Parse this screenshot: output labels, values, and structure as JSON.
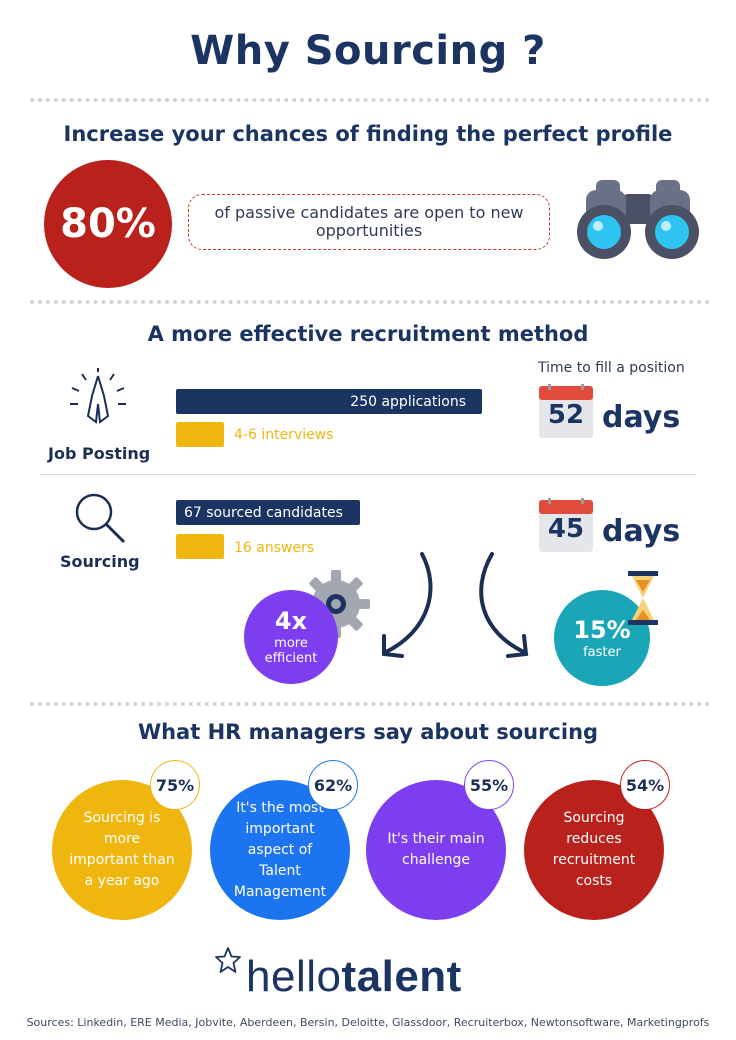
{
  "title": "Why Sourcing ?",
  "section1": {
    "heading": "Increase your chances of finding the perfect profile",
    "stat": "80%",
    "text": "of passive candidates are open to new opportunities"
  },
  "section2": {
    "heading": "A more effective recruitment method",
    "time_label": "Time to fill a position",
    "job_posting": {
      "label": "Job Posting",
      "bar1": "250 applications",
      "bar2": "4-6 interviews",
      "calendar": "52",
      "days": "days"
    },
    "sourcing": {
      "label": "Sourcing",
      "bar1": "67 sourced candidates",
      "bar2": "16 answers",
      "calendar": "45",
      "days": "days"
    },
    "efficient": {
      "big": "4x",
      "line1": "more",
      "line2": "efficient"
    },
    "faster": {
      "big": "15%",
      "line": "faster"
    }
  },
  "section3": {
    "heading": "What HR managers say about sourcing",
    "items": [
      {
        "pct": "75%",
        "text": "Sourcing is more important than a year ago",
        "color": "#efb60f"
      },
      {
        "pct": "62%",
        "text": "It's the most important aspect of Talent Management",
        "color": "#1d74f0"
      },
      {
        "pct": "55%",
        "text": "It's their main challenge",
        "color": "#7d3ef0"
      },
      {
        "pct": "54%",
        "text": "Sourcing reduces recruitment costs",
        "color": "#b9211c"
      }
    ]
  },
  "logo": {
    "part1": "hello",
    "part2": "talent"
  },
  "sources": "Sources: Linkedin, ERE Media, Jobvite, Aberdeen, Bersin, Deloitte, Glassdoor, Recruiterbox, Newtonsoftware, Marketingprofs",
  "colors": {
    "navy": "#1b3462",
    "red": "#b9211c",
    "yellow": "#efb60f",
    "blue": "#1d74f0",
    "purple": "#7d3ef0",
    "teal": "#1aa6b7"
  }
}
